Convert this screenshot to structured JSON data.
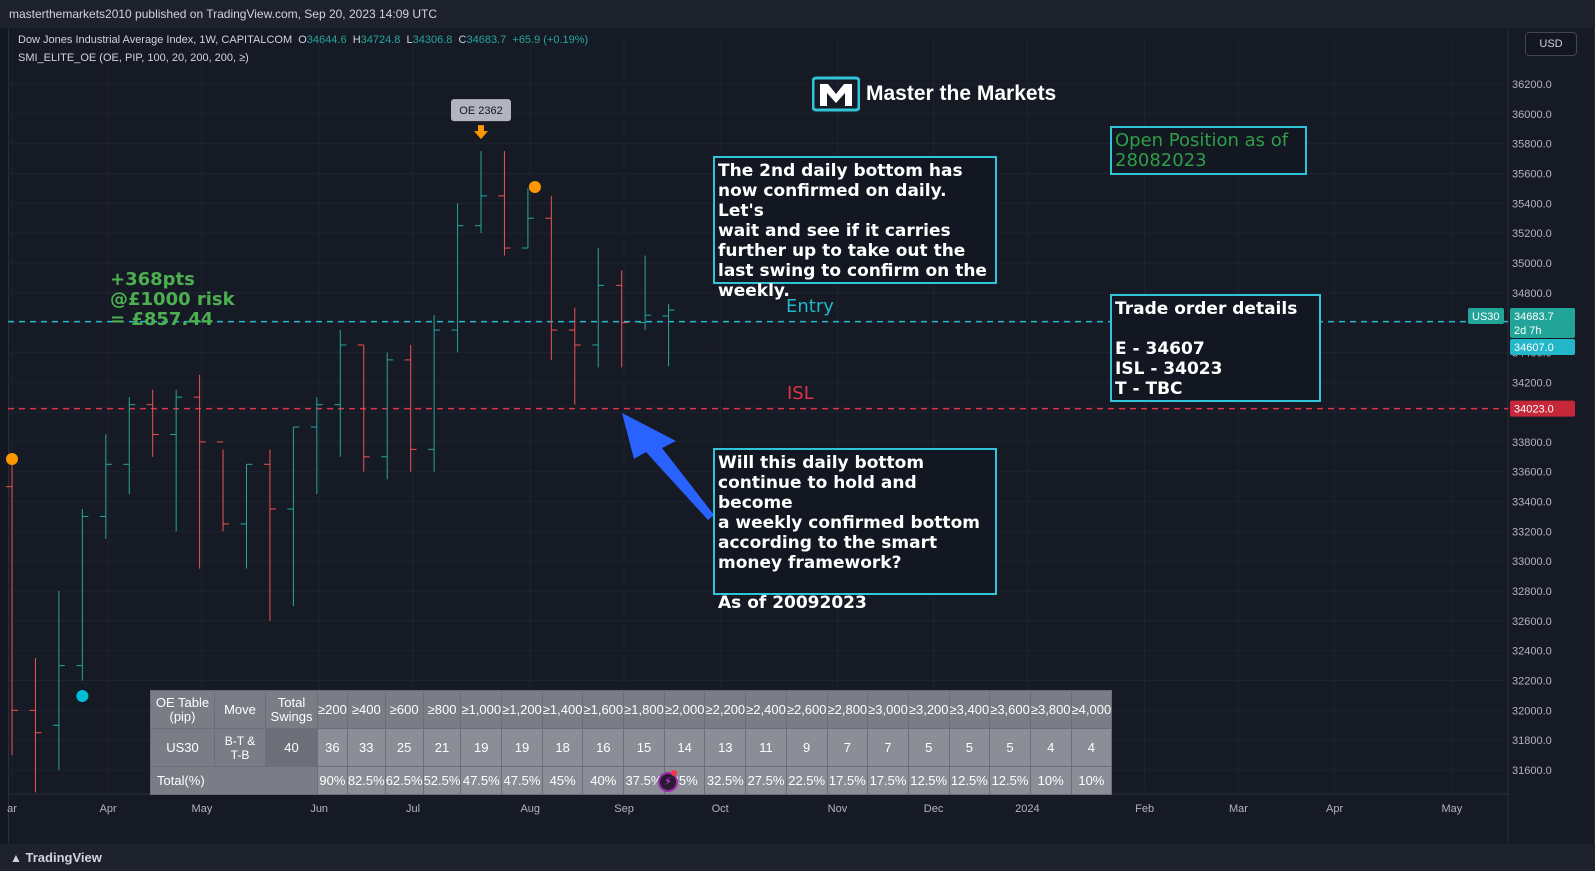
{
  "header": {
    "publish_info": "masterthemarkets2010 published on TradingView.com, Sep 20, 2023 14:09 UTC"
  },
  "legend": {
    "symbol": "Dow Jones Industrial Average Index, 1W, CAPITALCOM",
    "o_key": "O",
    "o": "34644.6",
    "h_key": "H",
    "h": "34724.8",
    "l_key": "L",
    "l": "34306.8",
    "c_key": "C",
    "c": "34683.7",
    "change": "+65.9 (+0.19%)",
    "indicator": "SMI_ELITE_OE (OE, PIP, 100, 20, 200, 200, ≥)"
  },
  "currency": "USD",
  "logo": {
    "text": "Master the Markets"
  },
  "annotations": {
    "pnl": "+368pts\n@£1000 risk\n= £857.44",
    "entry_label": "Entry",
    "isl_label": "ISL",
    "oe_marker": "OE 2362",
    "note_top": "The 2nd daily bottom has\nnow confirmed on daily. Let's\nwait and see if it carries\nfurther up to take out the\nlast swing to confirm on the\nweekly.",
    "note_bottom": "Will this daily bottom\ncontinue to hold and become\na weekly confirmed bottom\naccording to the smart\nmoney framework?\n\nAs of 20092023",
    "open_position": "Open Position as of\n28082023",
    "trade_details": "Trade order details\n\nE - 34607\nISL - 34023\nT - TBC"
  },
  "price_tags": {
    "symbol_tag": "US30",
    "last": "34683.7",
    "countdown": "2d 7h",
    "entry": "34607.0",
    "isl": "34023.0"
  },
  "colors": {
    "up": "#26a69a",
    "down": "#ef5350",
    "entry_line": "#22b8c9",
    "isl_line": "#e0334a",
    "box_border": "#2fc4d8",
    "pnl": "#4caf50",
    "open_pos_text": "#2e9e47",
    "arrow": "#2962ff",
    "orange": "#ff9800",
    "cyan_dot": "#00bcd4"
  },
  "chart_data": {
    "type": "candlestick",
    "title": "Dow Jones Industrial Average Index, 1W, CAPITALCOM",
    "xlabel": "",
    "ylabel": "",
    "y_ticks": [
      31600,
      31800,
      32000,
      32200,
      32400,
      32600,
      32800,
      33000,
      33200,
      33400,
      33600,
      33800,
      34000,
      34200,
      34400,
      34600,
      34800,
      35000,
      35200,
      35400,
      35600,
      35800,
      36000,
      36200
    ],
    "y_tick_labels": [
      "31600.0",
      "31800.0",
      "32000.0",
      "32200.0",
      "32400.0",
      "32600.0",
      "32800.0",
      "33000.0",
      "33200.0",
      "33400.0",
      "33600.0",
      "33800.0",
      "34000.0",
      "34200.0",
      "34400.0",
      "34600.0",
      "34800.0",
      "35000.0",
      "35200.0",
      "35400.0",
      "35600.0",
      "35800.0",
      "36000.0",
      "36200.0"
    ],
    "ylim": [
      31450,
      36300
    ],
    "x_labels": [
      "ar",
      "Apr",
      "May",
      "Jun",
      "Jul",
      "Aug",
      "Sep",
      "Oct",
      "Nov",
      "Dec",
      "2024",
      "Feb",
      "Mar",
      "Apr",
      "May"
    ],
    "x_label_weeks": [
      0,
      4.1,
      8.1,
      13.1,
      17.1,
      22.1,
      26.1,
      30.2,
      35.2,
      39.3,
      43.3,
      48.3,
      52.3,
      56.4,
      61.4
    ],
    "weeks": [
      {
        "w": 0,
        "o": 33500,
        "h": 33650,
        "l": 31700,
        "c": 32000
      },
      {
        "w": 1,
        "o": 32000,
        "h": 32350,
        "l": 31450,
        "c": 31850
      },
      {
        "w": 2,
        "o": 31900,
        "h": 32800,
        "l": 31600,
        "c": 32300
      },
      {
        "w": 3,
        "o": 32300,
        "h": 33350,
        "l": 32200,
        "c": 33300
      },
      {
        "w": 4,
        "o": 33300,
        "h": 33850,
        "l": 33150,
        "c": 33650
      },
      {
        "w": 5,
        "o": 33650,
        "h": 34100,
        "l": 33450,
        "c": 34050
      },
      {
        "w": 6,
        "o": 34050,
        "h": 34150,
        "l": 33700,
        "c": 33850
      },
      {
        "w": 7,
        "o": 33850,
        "h": 34150,
        "l": 33200,
        "c": 34100
      },
      {
        "w": 8,
        "o": 34100,
        "h": 34250,
        "l": 32950,
        "c": 33800
      },
      {
        "w": 9,
        "o": 33800,
        "h": 33750,
        "l": 33200,
        "c": 33250
      },
      {
        "w": 10,
        "o": 33250,
        "h": 33650,
        "l": 32950,
        "c": 33650
      },
      {
        "w": 11,
        "o": 33650,
        "h": 33750,
        "l": 32600,
        "c": 33350
      },
      {
        "w": 12,
        "o": 33350,
        "h": 33900,
        "l": 32700,
        "c": 33900
      },
      {
        "w": 13,
        "o": 33900,
        "h": 34100,
        "l": 33450,
        "c": 34050
      },
      {
        "w": 14,
        "o": 34050,
        "h": 34550,
        "l": 33700,
        "c": 34450
      },
      {
        "w": 15,
        "o": 34450,
        "h": 34450,
        "l": 33600,
        "c": 33700
      },
      {
        "w": 16,
        "o": 33700,
        "h": 34400,
        "l": 33550,
        "c": 34350
      },
      {
        "w": 17,
        "o": 34350,
        "h": 34450,
        "l": 33600,
        "c": 33750
      },
      {
        "w": 18,
        "o": 33750,
        "h": 34650,
        "l": 33600,
        "c": 34550
      },
      {
        "w": 19,
        "o": 34550,
        "h": 35400,
        "l": 34400,
        "c": 35250
      },
      {
        "w": 20,
        "o": 35250,
        "h": 35750,
        "l": 35200,
        "c": 35450
      },
      {
        "w": 21,
        "o": 35450,
        "h": 35750,
        "l": 35050,
        "c": 35100
      },
      {
        "w": 22,
        "o": 35100,
        "h": 35500,
        "l": 35100,
        "c": 35300
      },
      {
        "w": 23,
        "o": 35300,
        "h": 35450,
        "l": 34350,
        "c": 34550
      },
      {
        "w": 24,
        "o": 34550,
        "h": 34700,
        "l": 34050,
        "c": 34450
      },
      {
        "w": 25,
        "o": 34450,
        "h": 35100,
        "l": 34300,
        "c": 34850
      },
      {
        "w": 26,
        "o": 34850,
        "h": 34950,
        "l": 34300,
        "c": 34600
      },
      {
        "w": 27,
        "o": 34600,
        "h": 35050,
        "l": 34550,
        "c": 34650
      },
      {
        "w": 28,
        "o": 34644.6,
        "h": 34724.8,
        "l": 34306.8,
        "c": 34683.7
      }
    ],
    "entry_level": 34607,
    "isl_level": 34023,
    "oe_marker_week": 20,
    "orange_dot_weeks": [
      0,
      22.3
    ],
    "cyan_dot_week": 3,
    "ranges": {
      "oe_table_headers": [
        "OE Table (pip)",
        "Move",
        "Total Swings"
      ]
    }
  },
  "oe_table": {
    "header_first": "OE Table\n(pip)",
    "header_move": "Move",
    "header_total": "Total\nSwings",
    "thresholds": [
      "≥200",
      "≥400",
      "≥600",
      "≥800",
      "≥1,000",
      "≥1,200",
      "≥1,400",
      "≥1,600",
      "≥1,800",
      "≥2,000",
      "≥2,200",
      "≥2,400",
      "≥2,600",
      "≥2,800",
      "≥3,000",
      "≥3,200",
      "≥3,400",
      "≥3,600",
      "≥3,800",
      "≥4,000"
    ],
    "symbol": "US30",
    "move": "B-T &\nT-B",
    "total": "40",
    "counts": [
      "36",
      "33",
      "25",
      "21",
      "19",
      "19",
      "18",
      "16",
      "15",
      "14",
      "13",
      "11",
      "9",
      "7",
      "7",
      "5",
      "5",
      "5",
      "4",
      "4"
    ],
    "total_label": "Total(%)",
    "percents": [
      "90%",
      "82.5%",
      "62.5%",
      "52.5%",
      "47.5%",
      "47.5%",
      "45%",
      "40%",
      "37.5%",
      "35%",
      "32.5%",
      "27.5%",
      "22.5%",
      "17.5%",
      "17.5%",
      "12.5%",
      "12.5%",
      "12.5%",
      "10%",
      "10%"
    ]
  },
  "footer": {
    "brand": "TradingView"
  }
}
